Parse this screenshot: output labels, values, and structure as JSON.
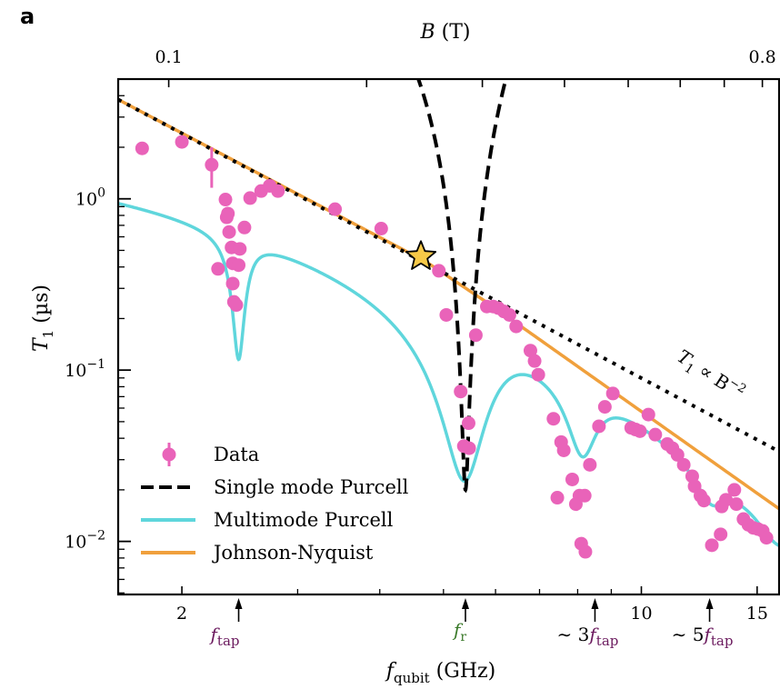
{
  "panel_label": "a",
  "chart_data": {
    "type": "scatter",
    "title": "",
    "xlabel": "f_qubit (GHz)",
    "xlabel_parts": {
      "main": "f",
      "sub": "qubit",
      "unit": " (GHz)"
    },
    "ylabel": "T_1 (µs)",
    "ylabel_parts": {
      "main": "T",
      "sub": "1",
      "unit": " (µs)"
    },
    "top_xlabel": "B (T)",
    "x_scale": "log",
    "y_scale": "log",
    "xlim": [
      1.6,
      16.2
    ],
    "ylim": [
      0.0049,
      5.0
    ],
    "x_ticks": [
      {
        "value": 2,
        "label": "2"
      },
      {
        "value": 10,
        "label": "10"
      },
      {
        "value": 15,
        "label": "15"
      }
    ],
    "x_minor_ticks": [
      3,
      4,
      5,
      6,
      7,
      8,
      9
    ],
    "y_ticks": [
      {
        "value": 1,
        "label": "10",
        "exp": "0"
      },
      {
        "value": 0.1,
        "label": "10",
        "exp": "−1"
      },
      {
        "value": 0.01,
        "label": "10",
        "exp": "−2"
      }
    ],
    "top_axis": {
      "conversion_B_per_GHz": 0.05236,
      "ticks": [
        0.1,
        0.2,
        0.3,
        0.4,
        0.5,
        0.6,
        0.7,
        0.8
      ],
      "labels": [
        {
          "value": 0.1,
          "label": "0.1"
        },
        {
          "value": 0.8,
          "label": "0.8"
        }
      ]
    },
    "grid": false,
    "legend_position": "bottom-left",
    "legend": [
      {
        "label": "Data",
        "style": "marker-errorbar",
        "color": "#e963b9"
      },
      {
        "label": "Single mode Purcell",
        "style": "dashed",
        "color": "#000000"
      },
      {
        "label": "Multimode Purcell",
        "style": "solid",
        "color": "#5fd6dc"
      },
      {
        "label": "Johnson-Nyquist",
        "style": "solid",
        "color": "#f0a03c"
      }
    ],
    "colors": {
      "data": "#e963b9",
      "single_mode": "#000000",
      "multimode": "#5fd6dc",
      "johnson": "#f0a03c",
      "scaling": "#000000",
      "star": "#f7c948",
      "tap_annotation": "#6b1a5e",
      "fr_annotation": "#3a7a2a"
    },
    "series": [
      {
        "name": "Data",
        "type": "scatter",
        "points": [
          [
            1.74,
            1.97,
            0.12
          ],
          [
            2.0,
            2.15,
            0
          ],
          [
            2.22,
            1.58,
            0.42
          ],
          [
            2.33,
            0.99,
            0
          ],
          [
            2.34,
            0.78,
            0
          ],
          [
            2.35,
            0.82,
            0
          ],
          [
            2.36,
            0.64,
            0
          ],
          [
            2.38,
            0.52,
            0
          ],
          [
            2.39,
            0.42,
            0
          ],
          [
            2.39,
            0.32,
            0
          ],
          [
            2.4,
            0.25,
            0
          ],
          [
            2.42,
            0.24,
            0
          ],
          [
            2.27,
            0.39,
            0
          ],
          [
            2.44,
            0.41,
            0
          ],
          [
            2.45,
            0.51,
            0
          ],
          [
            2.49,
            0.68,
            0
          ],
          [
            2.54,
            1.01,
            0
          ],
          [
            2.64,
            1.11,
            0
          ],
          [
            2.72,
            1.19,
            0
          ],
          [
            2.8,
            1.11,
            0
          ],
          [
            3.42,
            0.87,
            0
          ],
          [
            4.02,
            0.67,
            0
          ],
          [
            4.62,
            0.47,
            0
          ],
          [
            4.92,
            0.38,
            0
          ],
          [
            5.05,
            0.21,
            0
          ],
          [
            5.31,
            0.075,
            0
          ],
          [
            5.37,
            0.036,
            0
          ],
          [
            5.47,
            0.035,
            0
          ],
          [
            5.46,
            0.049,
            0
          ],
          [
            5.6,
            0.16,
            0
          ],
          [
            5.82,
            0.235,
            0
          ],
          [
            5.95,
            0.235,
            0
          ],
          [
            6.06,
            0.23,
            0
          ],
          [
            6.18,
            0.22,
            0
          ],
          [
            6.3,
            0.21,
            0
          ],
          [
            6.45,
            0.18,
            0
          ],
          [
            6.78,
            0.13,
            0
          ],
          [
            6.88,
            0.113,
            0
          ],
          [
            6.97,
            0.094,
            0
          ],
          [
            7.35,
            0.052,
            0
          ],
          [
            7.55,
            0.038,
            0
          ],
          [
            7.62,
            0.034,
            0
          ],
          [
            7.45,
            0.018,
            0
          ],
          [
            7.85,
            0.023,
            0
          ],
          [
            8.05,
            0.0185,
            0
          ],
          [
            7.95,
            0.0165,
            0
          ],
          [
            8.2,
            0.0185,
            0
          ],
          [
            8.1,
            0.0097,
            0
          ],
          [
            8.22,
            0.0087,
            0
          ],
          [
            8.35,
            0.028,
            0
          ],
          [
            8.62,
            0.047,
            0
          ],
          [
            8.8,
            0.061,
            0
          ],
          [
            9.05,
            0.073,
            0
          ],
          [
            9.65,
            0.046,
            0
          ],
          [
            9.8,
            0.045,
            0
          ],
          [
            9.95,
            0.044,
            0
          ],
          [
            10.25,
            0.055,
            0
          ],
          [
            10.5,
            0.042,
            0
          ],
          [
            10.95,
            0.037,
            0
          ],
          [
            11.15,
            0.035,
            0
          ],
          [
            11.35,
            0.032,
            0
          ],
          [
            11.6,
            0.028,
            0
          ],
          [
            11.95,
            0.024,
            0
          ],
          [
            12.05,
            0.021,
            0
          ],
          [
            12.3,
            0.0185,
            0
          ],
          [
            12.45,
            0.0173,
            0
          ],
          [
            12.8,
            0.0095,
            0
          ],
          [
            13.2,
            0.011,
            0
          ],
          [
            13.25,
            0.016,
            0
          ],
          [
            13.45,
            0.0175,
            0
          ],
          [
            13.85,
            0.02,
            0
          ],
          [
            13.95,
            0.0165,
            0
          ],
          [
            14.3,
            0.0135,
            0
          ],
          [
            14.55,
            0.0125,
            0
          ],
          [
            14.8,
            0.012,
            0
          ],
          [
            15.05,
            0.0118,
            0
          ],
          [
            15.3,
            0.0115,
            0
          ],
          [
            15.5,
            0.0105,
            0
          ]
        ]
      },
      {
        "name": "Johnson-Nyquist",
        "type": "line",
        "x": [
          1.6,
          4.7,
          5.9,
          16.2
        ],
        "y": [
          3.8,
          0.43,
          0.24,
          0.0155
        ]
      },
      {
        "name": "T1 ∝ B^-2 scaling",
        "type": "line",
        "x": [
          1.6,
          16.2
        ],
        "y": [
          3.8,
          0.0335
        ]
      },
      {
        "name": "Single mode Purcell",
        "type": "line",
        "resonance_GHz": 5.4,
        "x_range": [
          4.55,
          6.6
        ]
      },
      {
        "name": "Multimode Purcell",
        "type": "line",
        "dips_GHz": [
          2.44,
          5.38,
          8.14,
          12.8,
          16.2
        ]
      }
    ],
    "highlight_point": {
      "x": 4.62,
      "y": 0.46,
      "marker": "star"
    },
    "annotations": [
      {
        "text": "T1 ∝ B^-2",
        "parts": {
          "main": "T",
          "sub": "1",
          "mid": " ∝ B",
          "sup": "−2"
        },
        "x": 11.8,
        "y": 0.1
      },
      {
        "text": "f_tap",
        "arrow_x": 2.44,
        "color_key": "tap_annotation"
      },
      {
        "text": "f_r",
        "arrow_x": 5.4,
        "color_key": "fr_annotation"
      },
      {
        "text": "~ 3f_tap",
        "arrow_x": 8.5,
        "color_key": "tap_annotation"
      },
      {
        "text": "~ 5f_tap",
        "arrow_x": 12.7,
        "color_key": "tap_annotation"
      }
    ],
    "annotation_labels": {
      "ftap_main": "f",
      "ftap_sub": "tap",
      "fr_main": "f",
      "fr_sub": "r",
      "tilde3": "∼ 3",
      "tilde5": "∼ 5"
    }
  }
}
